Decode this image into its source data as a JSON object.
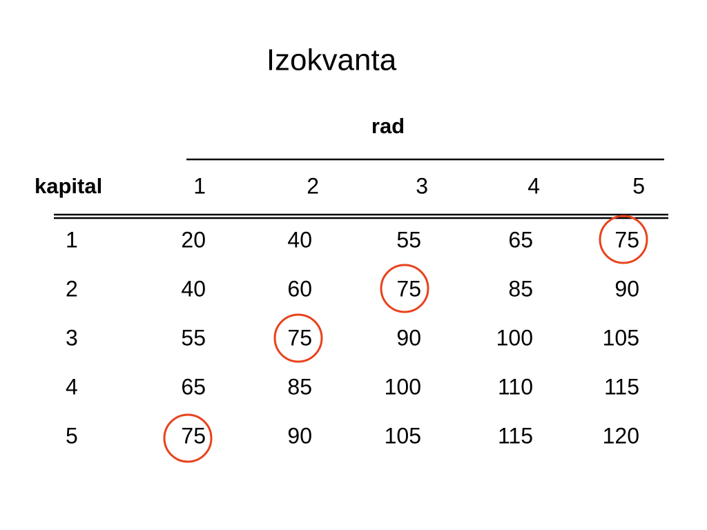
{
  "title": "Izokvanta",
  "table": {
    "column_group": "rad",
    "row_header": "kapital",
    "columns": [
      1,
      2,
      3,
      4,
      5
    ],
    "rows": [
      {
        "label": 1,
        "values": [
          20,
          40,
          55,
          65,
          75
        ]
      },
      {
        "label": 2,
        "values": [
          40,
          60,
          75,
          85,
          90
        ]
      },
      {
        "label": 3,
        "values": [
          55,
          75,
          90,
          100,
          105
        ]
      },
      {
        "label": 4,
        "values": [
          65,
          85,
          100,
          110,
          115
        ]
      },
      {
        "label": 5,
        "values": [
          75,
          90,
          105,
          115,
          120
        ]
      }
    ]
  }
}
